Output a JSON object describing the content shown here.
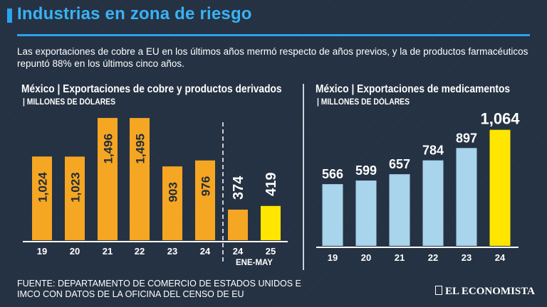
{
  "header": {
    "title": "Industrias en zona de riesgo",
    "subtitle": "Las exportaciones de cobre a EU en los últimos años mermó respecto de años previos, y la de productos farmacéuticos repuntó 88% en los últimos cinco años."
  },
  "colors": {
    "accent": "#2aa3f0",
    "orange": "#f5a623",
    "yellow": "#ffe600",
    "lightblue": "#a8d4ec",
    "background": "#243142"
  },
  "chart_data": [
    {
      "type": "bar",
      "title": "México | Exportaciones de cobre y productos derivados",
      "ylabel": "| MILLONES DE DÓLARES",
      "categories": [
        "19",
        "20",
        "21",
        "22",
        "23",
        "24",
        "24",
        "25"
      ],
      "values": [
        1024,
        1023,
        1496,
        1495,
        903,
        976,
        374,
        419
      ],
      "labels": [
        "1,024",
        "1,023",
        "1,496",
        "1,495",
        "903",
        "976",
        "374",
        "419"
      ],
      "bar_colors": [
        "orange",
        "orange",
        "orange",
        "orange",
        "orange",
        "orange",
        "orange",
        "yellow"
      ],
      "period_note": "ENE-MAY",
      "ylim": [
        0,
        1700
      ]
    },
    {
      "type": "bar",
      "title": "México | Exportaciones de medicamentos",
      "ylabel": "| MILLONES DE DÓLARES",
      "categories": [
        "19",
        "20",
        "21",
        "22",
        "23",
        "24"
      ],
      "values": [
        566,
        599,
        657,
        784,
        897,
        1064
      ],
      "labels": [
        "566",
        "599",
        "657",
        "784",
        "897",
        "1,064"
      ],
      "bar_colors": [
        "lightblue",
        "lightblue",
        "lightblue",
        "lightblue",
        "lightblue",
        "yellow"
      ],
      "ylim": [
        0,
        1250
      ]
    }
  ],
  "footer": {
    "source": "FUENTE: DEPARTAMENTO DE COMERCIO DE ESTADOS UNIDOS E IMCO CON DATOS DE LA OFICINA DEL CENSO DE EU",
    "logo": "EL ECONOMISTA"
  }
}
